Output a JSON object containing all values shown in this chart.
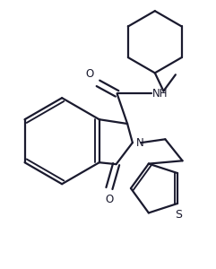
{
  "background": "#ffffff",
  "line_color": "#1a1a2e",
  "line_width": 1.6,
  "font_size": 8.5,
  "fig_width": 2.41,
  "fig_height": 3.0,
  "dpi": 100,
  "xlim": [
    -0.1,
    2.41
  ],
  "ylim": [
    -0.05,
    3.0
  ]
}
